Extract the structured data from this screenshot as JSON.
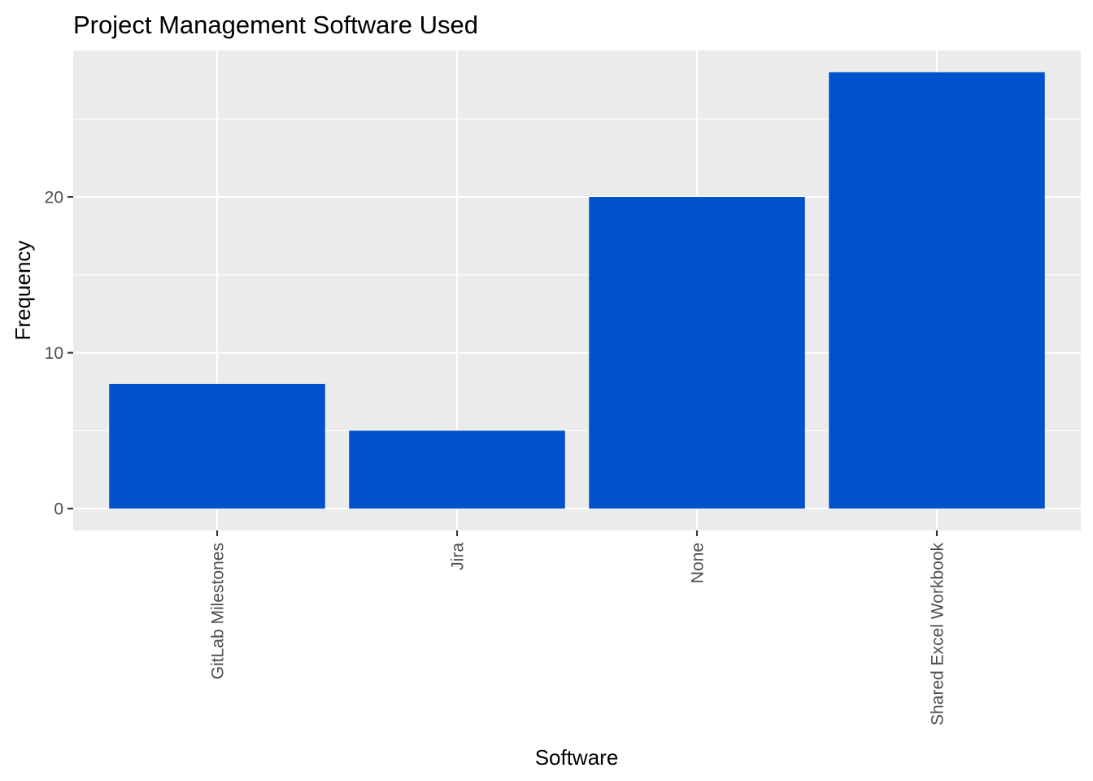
{
  "chart_data": {
    "type": "bar",
    "title": "Project Management Software Used",
    "xlabel": "Software",
    "ylabel": "Frequency",
    "categories": [
      "GitLab Milestones",
      "Jira",
      "None",
      "Shared Excel Workbook"
    ],
    "values": [
      8,
      5,
      20,
      28
    ],
    "ylim": [
      -1.4,
      29.4
    ],
    "yticks": [
      0,
      10,
      20
    ],
    "ytick_labels": [
      "0",
      "10",
      "20"
    ],
    "grid": true,
    "legend": "none",
    "colors": {
      "bar": "#0052CC",
      "panel": "#EBEBEB",
      "grid": "#FFFFFF",
      "tick_text": "#4D4D4D"
    }
  }
}
